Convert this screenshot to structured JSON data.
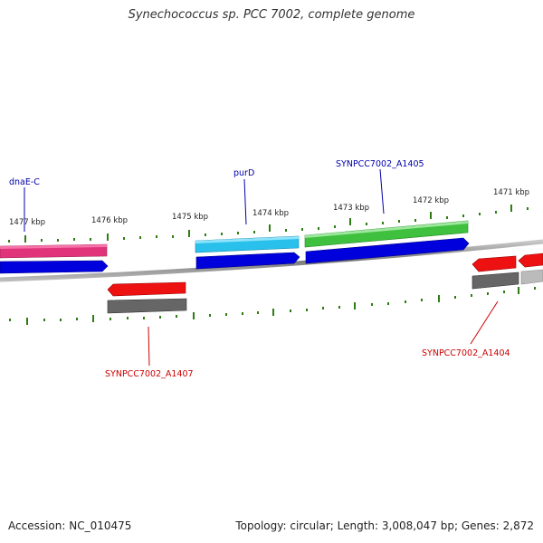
{
  "title": "Synechococcus sp. PCC 7002, complete genome",
  "footer": {
    "accession": "Accession: NC_010475",
    "summary": "Topology: circular; Length: 3,008,047 bp; Genes: 2,872"
  },
  "ruler": {
    "ticks": [
      {
        "label": "1477 kbp"
      },
      {
        "label": "1476 kbp"
      },
      {
        "label": "1475 kbp"
      },
      {
        "label": "1474 kbp"
      },
      {
        "label": "1473 kbp"
      },
      {
        "label": "1472 kbp"
      },
      {
        "label": "1471 kbp"
      }
    ]
  },
  "gene_labels": [
    {
      "text": "dnaE-C",
      "strand": "forward",
      "color": "#0000aa"
    },
    {
      "text": "purD",
      "strand": "forward",
      "color": "#0000aa"
    },
    {
      "text": "SYNPCC7002_A1405",
      "strand": "forward",
      "color": "#0000aa"
    },
    {
      "text": "SYNPCC7002_A1407",
      "strand": "reverse",
      "color": "#cc0000"
    },
    {
      "text": "SYNPCC7002_A1404",
      "strand": "reverse",
      "color": "#cc0000"
    }
  ],
  "colors": {
    "backbone": "#888888",
    "ticks": "#2e7d12",
    "cds": "#0000dd",
    "gene_pink": "#e0337a",
    "gene_cyan": "#29c0ec",
    "gene_green": "#3fc13f",
    "gene_red": "#ee1111",
    "gene_gray": "#666666",
    "gene_lightgray": "#bbbbbb"
  }
}
